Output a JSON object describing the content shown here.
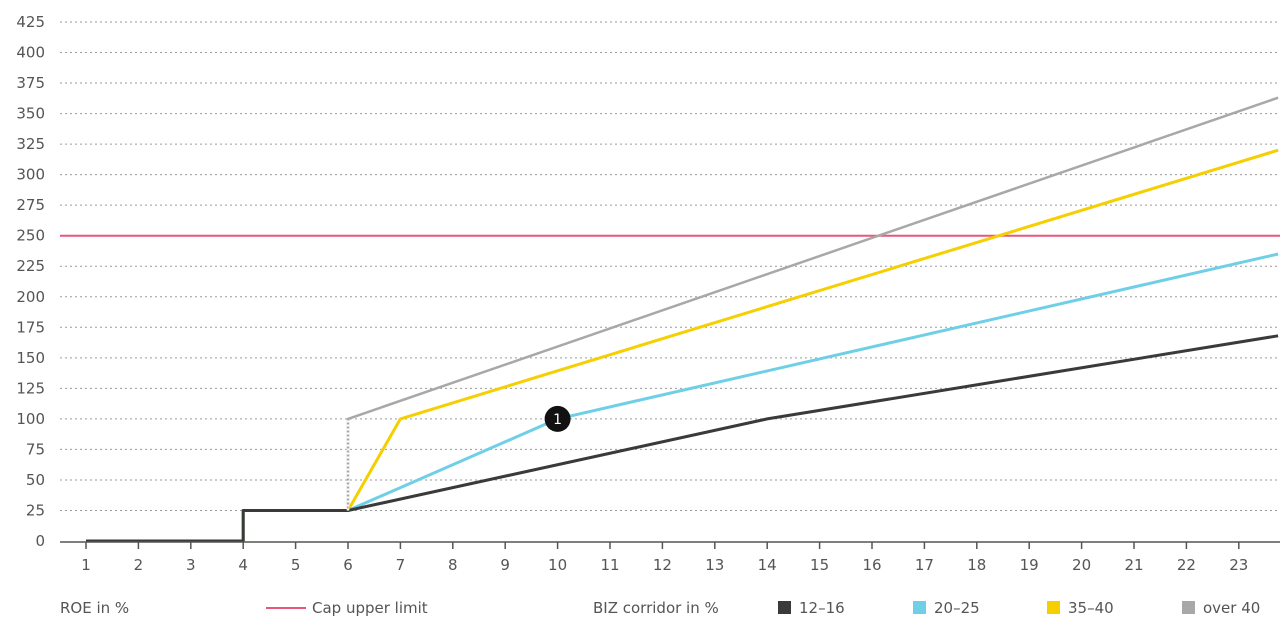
{
  "chart_data": {
    "type": "line",
    "xlabel": "ROE in %",
    "x_ticks": [
      1,
      2,
      3,
      4,
      5,
      6,
      7,
      8,
      9,
      10,
      11,
      12,
      13,
      14,
      15,
      16,
      17,
      18,
      19,
      20,
      21,
      22,
      23
    ],
    "xlim": [
      1,
      23.75
    ],
    "ylim": [
      0,
      425
    ],
    "y_ticks": [
      0,
      25,
      50,
      75,
      100,
      125,
      150,
      175,
      200,
      225,
      250,
      275,
      300,
      325,
      350,
      375,
      400,
      425
    ],
    "grid": true,
    "legend_placement": "bottom",
    "legend_title": "BIZ corridor in %",
    "cap": {
      "label": "Cap upper limit",
      "value": 250,
      "color": "#e8577a"
    },
    "series": [
      {
        "name": "12–16",
        "color": "#3a3a3a",
        "points": [
          [
            1,
            0
          ],
          [
            4,
            0
          ],
          [
            4,
            25
          ],
          [
            6,
            25
          ],
          [
            14,
            100
          ],
          [
            23.75,
            168
          ]
        ]
      },
      {
        "name": "20–25",
        "color": "#6ecfe6",
        "points": [
          [
            1,
            0
          ],
          [
            4,
            0
          ],
          [
            4,
            25
          ],
          [
            6,
            25
          ],
          [
            10,
            100
          ],
          [
            23.75,
            235
          ]
        ]
      },
      {
        "name": "35–40",
        "color": "#f5cf00",
        "points": [
          [
            1,
            0
          ],
          [
            4,
            0
          ],
          [
            4,
            25
          ],
          [
            6,
            25
          ],
          [
            7,
            100
          ],
          [
            23.75,
            320
          ]
        ]
      },
      {
        "name": "over 40",
        "color": "#a8a8a8",
        "points": [
          [
            1,
            0
          ],
          [
            4,
            0
          ],
          [
            4,
            25
          ],
          [
            6,
            25
          ],
          [
            6,
            100
          ],
          [
            23.75,
            363
          ]
        ]
      }
    ],
    "annotations": [
      {
        "label": "1",
        "x": 10,
        "y": 100
      }
    ]
  }
}
